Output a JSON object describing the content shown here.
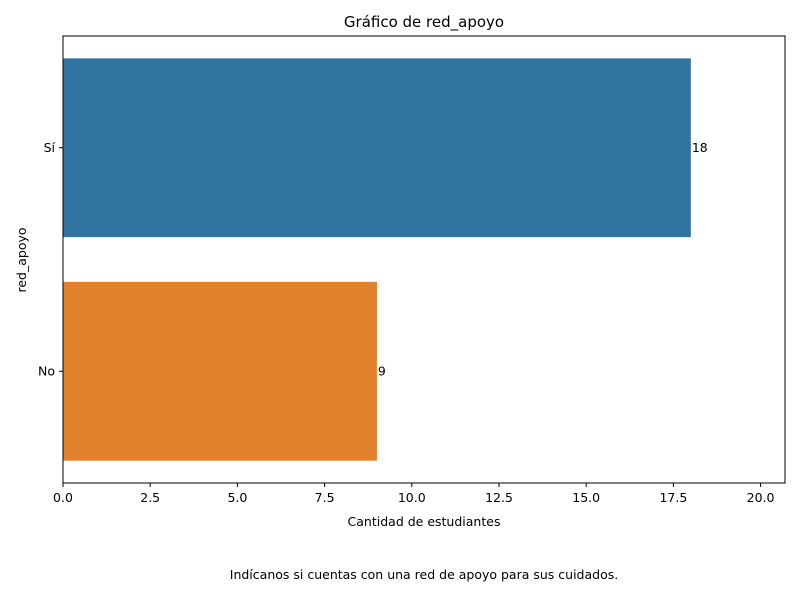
{
  "chart_data": {
    "type": "bar",
    "orientation": "horizontal",
    "title": "Gráfico de red_apoyo",
    "xlabel": "Cantidad de estudiantes",
    "ylabel": "red_apoyo",
    "categories": [
      "Sí",
      "No"
    ],
    "values": [
      18,
      9
    ],
    "data_labels": [
      "18",
      "9"
    ],
    "xlim": [
      0,
      20.7
    ],
    "xticks": [
      0,
      2.5,
      5,
      7.5,
      10,
      12.5,
      15,
      17.5,
      20
    ],
    "xtick_labels": [
      "0.0",
      "2.5",
      "5.0",
      "7.5",
      "10.0",
      "12.5",
      "15.0",
      "17.5",
      "20.0"
    ],
    "bar_colors": [
      "#3274a1",
      "#e1812c"
    ],
    "grid": false,
    "legend": "none"
  },
  "caption": "Indícanos si cuentas con una red de apoyo para sus cuidados."
}
